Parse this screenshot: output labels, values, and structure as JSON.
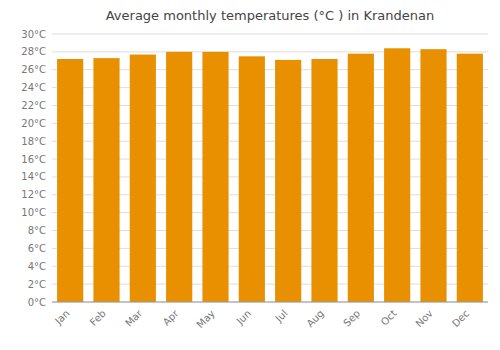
{
  "chart_data": {
    "type": "bar",
    "title": "Average monthly temperatures (°C ) in Krandenan",
    "categories": [
      "Jan",
      "Feb",
      "Mar",
      "Apr",
      "May",
      "Jun",
      "Jul",
      "Aug",
      "Sep",
      "Oct",
      "Nov",
      "Dec"
    ],
    "values": [
      27.2,
      27.3,
      27.7,
      28.0,
      28.0,
      27.5,
      27.1,
      27.2,
      27.8,
      28.4,
      28.3,
      27.8
    ],
    "color": "#E89000",
    "ylim": [
      0,
      30
    ],
    "yticks": [
      {
        "value": 0,
        "label": "0°C"
      },
      {
        "value": 2,
        "label": "2°C"
      },
      {
        "value": 4,
        "label": "4°C"
      },
      {
        "value": 6,
        "label": "6°C"
      },
      {
        "value": 8,
        "label": "8°C"
      },
      {
        "value": 10,
        "label": "10°C"
      },
      {
        "value": 12,
        "label": "12°C"
      },
      {
        "value": 14,
        "label": "14°C"
      },
      {
        "value": 16,
        "label": "16°C"
      },
      {
        "value": 18,
        "label": "18°C"
      },
      {
        "value": 20,
        "label": "20°C"
      },
      {
        "value": 22,
        "label": "22°C"
      },
      {
        "value": 24,
        "label": "24°C"
      },
      {
        "value": 26,
        "label": "26°C"
      },
      {
        "value": 28,
        "label": "28°C"
      },
      {
        "value": 30,
        "label": "30°C"
      }
    ],
    "grid": true
  }
}
